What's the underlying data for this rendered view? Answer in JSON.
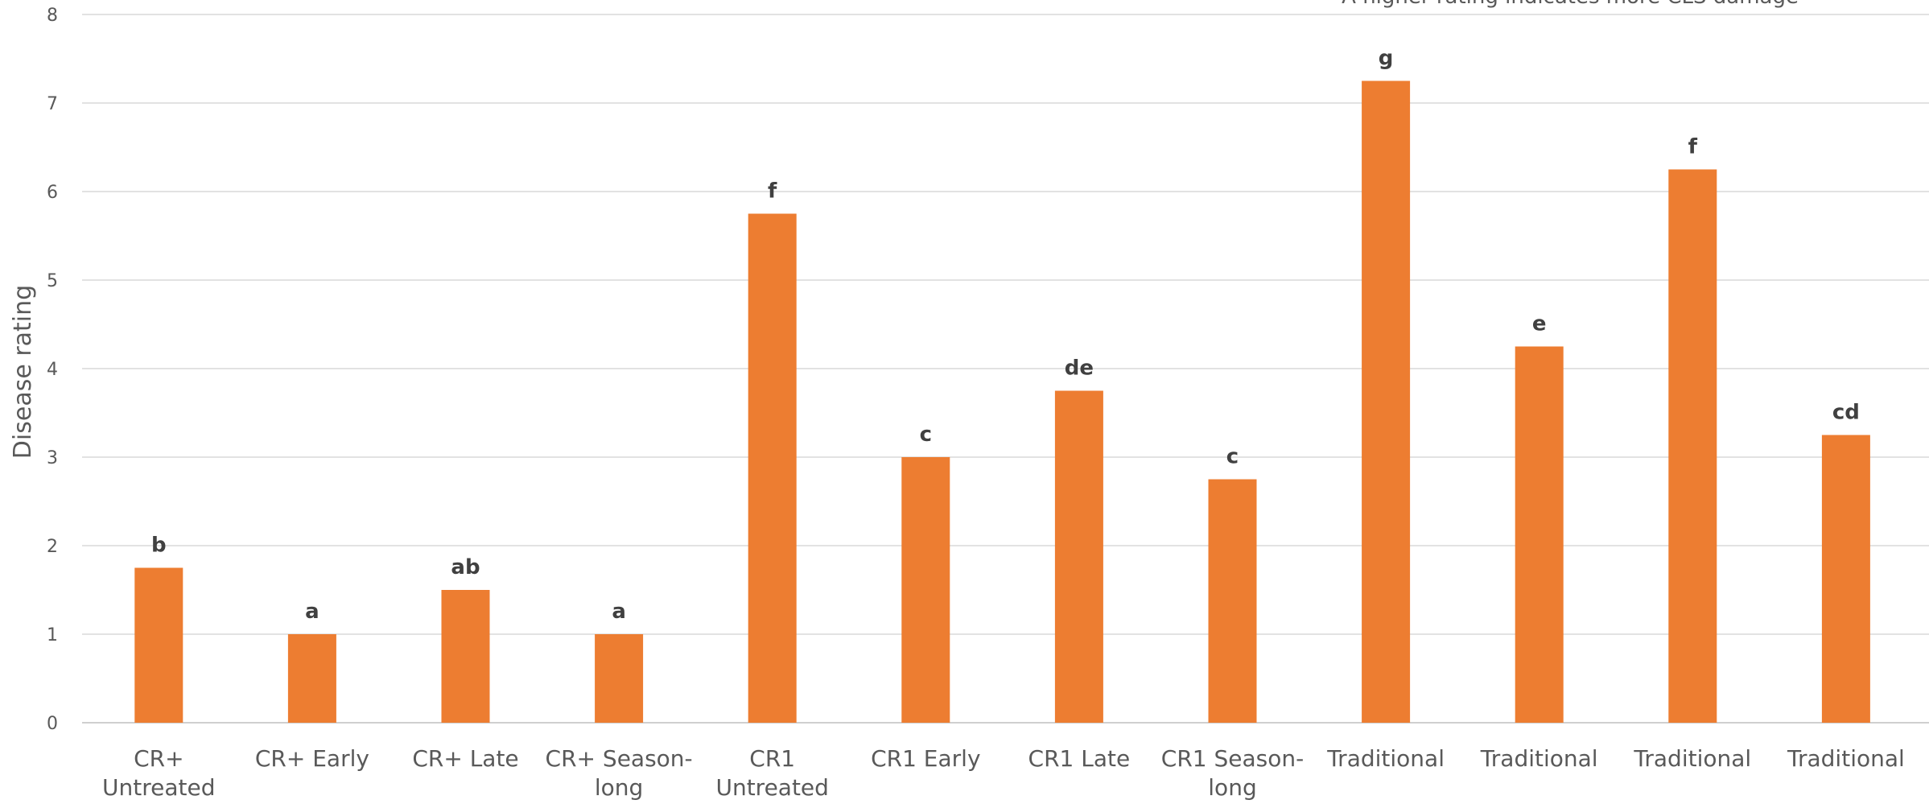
{
  "chart_data": {
    "type": "bar",
    "title": "",
    "annotation": "*A higher rating indicates more CLS damage",
    "xlabel": "",
    "ylabel": "Disease rating",
    "ylim": [
      0,
      8
    ],
    "yticks": [
      0,
      1,
      2,
      3,
      4,
      5,
      6,
      7,
      8
    ],
    "grid": true,
    "legend": "none",
    "bar_color": "#ED7D31",
    "categories": [
      "CR+ Untreated",
      "CR+ Early",
      "CR+ Late",
      "CR+ Season-long",
      "CR1 Untreated",
      "CR1 Early",
      "CR1 Late",
      "CR1 Season-long",
      "Traditional",
      "Traditional",
      "Traditional",
      "Traditional"
    ],
    "category_lines": [
      [
        "CR+",
        "Untreated"
      ],
      [
        "CR+ Early"
      ],
      [
        "CR+ Late"
      ],
      [
        "CR+ Season-",
        "long"
      ],
      [
        "CR1",
        "Untreated"
      ],
      [
        "CR1 Early"
      ],
      [
        "CR1 Late"
      ],
      [
        "CR1 Season-",
        "long"
      ],
      [
        "Traditional"
      ],
      [
        "Traditional"
      ],
      [
        "Traditional"
      ],
      [
        "Traditional"
      ]
    ],
    "values": [
      1.75,
      1.0,
      1.5,
      1.0,
      5.75,
      3.0,
      3.75,
      2.75,
      7.25,
      4.25,
      6.25,
      3.25
    ],
    "data_labels": [
      "b",
      "a",
      "ab",
      "a",
      "f",
      "c",
      "de",
      "c",
      "g",
      "e",
      "f",
      "cd"
    ]
  }
}
